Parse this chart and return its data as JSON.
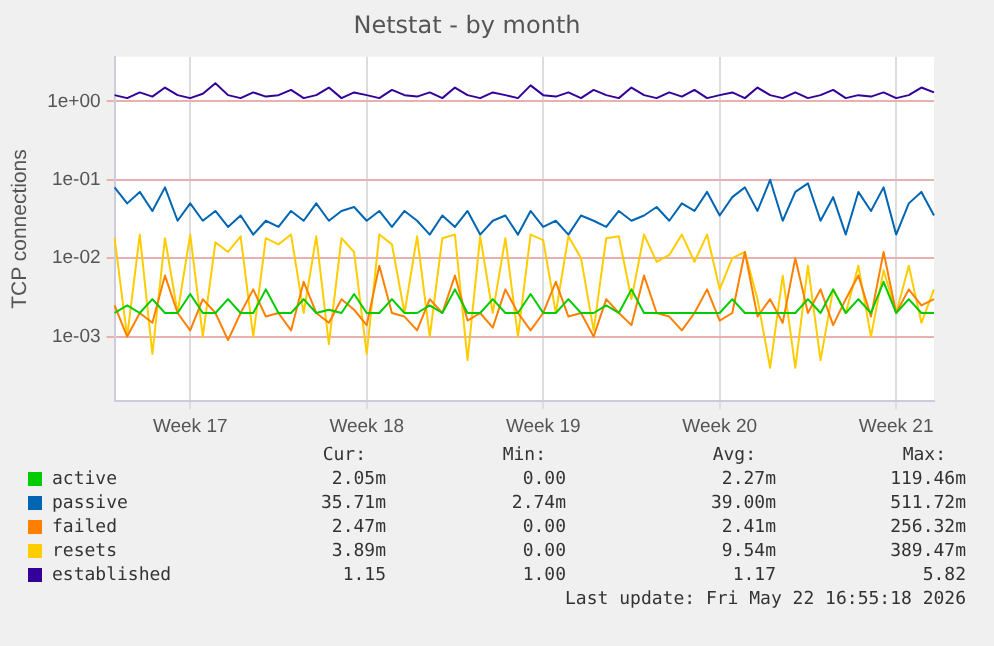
{
  "chart_data": {
    "type": "line",
    "title": "Netstat - by month",
    "ylabel": "TCP connections",
    "log": "y",
    "grid": true,
    "legend": "bottom",
    "marker": "none",
    "line_style": "solid",
    "categories": [
      null,
      null,
      null,
      null,
      null,
      null,
      "Week 17",
      null,
      null,
      null,
      null,
      null,
      null,
      null,
      null,
      null,
      null,
      null,
      null,
      null,
      "Week 18",
      null,
      null,
      null,
      null,
      null,
      null,
      null,
      null,
      null,
      null,
      null,
      null,
      null,
      "Week 19",
      null,
      null,
      null,
      null,
      null,
      null,
      null,
      null,
      null,
      null,
      null,
      null,
      null,
      "Week 20",
      null,
      null,
      null,
      null,
      null,
      null,
      null,
      null,
      null,
      null,
      null,
      null,
      null,
      "Week 21",
      null,
      null,
      null
    ],
    "ylim": [
      0.00015,
      3.7
    ],
    "yticks": [
      {
        "value": 0.001,
        "label": "1e-03"
      },
      {
        "value": 0.01,
        "label": "1e-02"
      },
      {
        "value": 0.1,
        "label": "1e-01"
      },
      {
        "value": 1,
        "label": "1e+00"
      }
    ],
    "series": [
      {
        "name": "active",
        "color": "#00cc00",
        "values": [
          0.002,
          0.0025,
          0.002,
          0.003,
          0.002,
          0.002,
          0.0035,
          0.002,
          0.002,
          0.003,
          0.002,
          0.002,
          0.004,
          0.002,
          0.002,
          0.003,
          0.002,
          0.0022,
          0.002,
          0.0035,
          0.002,
          0.002,
          0.003,
          0.002,
          0.002,
          0.0025,
          0.002,
          0.004,
          0.002,
          0.002,
          0.003,
          0.002,
          0.002,
          0.0035,
          0.002,
          0.002,
          0.003,
          0.002,
          0.002,
          0.0025,
          0.002,
          0.004,
          0.002,
          0.002,
          0.002,
          0.002,
          0.002,
          0.002,
          0.002,
          0.003,
          0.002,
          0.002,
          0.002,
          0.002,
          0.002,
          0.003,
          0.002,
          0.004,
          0.002,
          0.003,
          0.002,
          0.005,
          0.002,
          0.003,
          0.002,
          0.002
        ]
      },
      {
        "name": "passive",
        "color": "#0066b3",
        "values": [
          0.08,
          0.05,
          0.07,
          0.04,
          0.08,
          0.03,
          0.05,
          0.03,
          0.04,
          0.025,
          0.035,
          0.02,
          0.03,
          0.025,
          0.04,
          0.03,
          0.05,
          0.03,
          0.04,
          0.045,
          0.03,
          0.04,
          0.025,
          0.04,
          0.03,
          0.02,
          0.035,
          0.025,
          0.04,
          0.02,
          0.03,
          0.035,
          0.02,
          0.04,
          0.025,
          0.03,
          0.02,
          0.035,
          0.03,
          0.025,
          0.04,
          0.03,
          0.035,
          0.045,
          0.03,
          0.05,
          0.04,
          0.07,
          0.035,
          0.06,
          0.08,
          0.04,
          0.1,
          0.03,
          0.07,
          0.09,
          0.03,
          0.06,
          0.02,
          0.07,
          0.04,
          0.08,
          0.02,
          0.05,
          0.07,
          0.035
        ]
      },
      {
        "name": "failed",
        "color": "#ff8000",
        "values": [
          0.0025,
          0.001,
          0.002,
          0.0015,
          0.006,
          0.002,
          0.0012,
          0.003,
          0.002,
          0.0009,
          0.002,
          0.004,
          0.0018,
          0.002,
          0.0012,
          0.005,
          0.002,
          0.0015,
          0.003,
          0.0022,
          0.0014,
          0.008,
          0.002,
          0.0018,
          0.0012,
          0.003,
          0.002,
          0.006,
          0.0016,
          0.002,
          0.0013,
          0.004,
          0.002,
          0.0012,
          0.002,
          0.005,
          0.0018,
          0.002,
          0.001,
          0.003,
          0.002,
          0.0014,
          0.006,
          0.002,
          0.0018,
          0.0012,
          0.002,
          0.004,
          0.0016,
          0.002,
          0.012,
          0.0018,
          0.003,
          0.0015,
          0.01,
          0.002,
          0.004,
          0.0014,
          0.003,
          0.006,
          0.0018,
          0.012,
          0.002,
          0.004,
          0.0025,
          0.003
        ]
      },
      {
        "name": "resets",
        "color": "#ffcc00",
        "values": [
          0.018,
          0.001,
          0.02,
          0.0006,
          0.018,
          0.002,
          0.02,
          0.001,
          0.016,
          0.012,
          0.019,
          0.001,
          0.018,
          0.015,
          0.02,
          0.002,
          0.019,
          0.0008,
          0.018,
          0.012,
          0.0006,
          0.02,
          0.015,
          0.002,
          0.019,
          0.001,
          0.018,
          0.02,
          0.0005,
          0.019,
          0.002,
          0.018,
          0.001,
          0.02,
          0.017,
          0.002,
          0.019,
          0.01,
          0.0012,
          0.018,
          0.019,
          0.003,
          0.02,
          0.009,
          0.011,
          0.02,
          0.009,
          0.02,
          0.004,
          0.01,
          0.012,
          0.003,
          0.0004,
          0.006,
          0.0004,
          0.008,
          0.0005,
          0.004,
          0.002,
          0.008,
          0.001,
          0.007,
          0.002,
          0.008,
          0.0015,
          0.004
        ]
      },
      {
        "name": "established",
        "color": "#330099",
        "values": [
          1.2,
          1.1,
          1.3,
          1.15,
          1.5,
          1.2,
          1.1,
          1.25,
          1.7,
          1.2,
          1.1,
          1.3,
          1.15,
          1.2,
          1.4,
          1.1,
          1.2,
          1.5,
          1.1,
          1.3,
          1.2,
          1.1,
          1.4,
          1.2,
          1.15,
          1.3,
          1.1,
          1.5,
          1.2,
          1.1,
          1.3,
          1.2,
          1.1,
          1.6,
          1.2,
          1.15,
          1.3,
          1.1,
          1.4,
          1.2,
          1.1,
          1.5,
          1.2,
          1.1,
          1.3,
          1.15,
          1.4,
          1.1,
          1.2,
          1.3,
          1.1,
          1.5,
          1.2,
          1.1,
          1.3,
          1.1,
          1.2,
          1.4,
          1.1,
          1.2,
          1.15,
          1.3,
          1.1,
          1.2,
          1.5,
          1.3
        ]
      }
    ],
    "annotations": [
      "Cur:",
      "Min:",
      "Avg:",
      "Max:",
      "2.05m",
      "0.00",
      "2.27m",
      "119.46m",
      "35.71m",
      "2.74m",
      "39.00m",
      "511.72m",
      "2.47m",
      "0.00",
      "2.41m",
      "256.32m",
      "3.89m",
      "0.00",
      "9.54m",
      "389.47m",
      "1.15",
      "1.00",
      "1.17",
      "5.82",
      "Last update: Fri May 22 16:55:18 2026"
    ]
  }
}
